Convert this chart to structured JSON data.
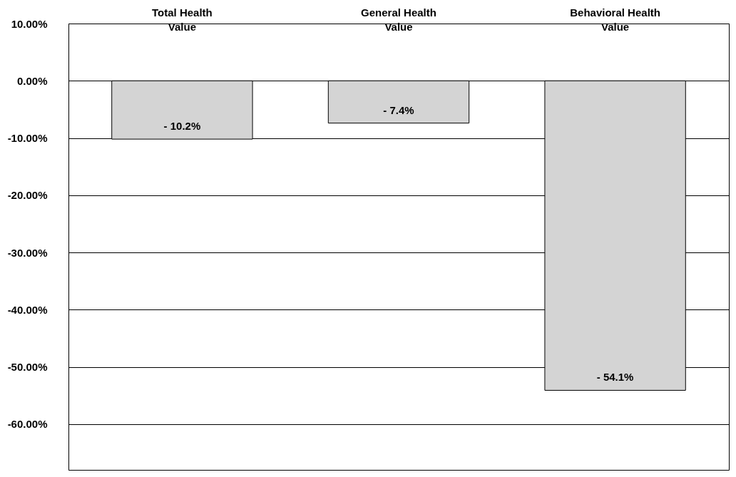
{
  "chart_data": {
    "type": "bar",
    "categories": [
      "Total Health Value",
      "General Health Value",
      "Behavioral Health Value"
    ],
    "values": [
      -10.2,
      -7.4,
      -54.1
    ],
    "value_labels": [
      "- 10.2%",
      "- 7.4%",
      "- 54.1%"
    ],
    "color": "#d4d4d4",
    "ylim": [
      -68,
      10
    ],
    "yticks": [
      {
        "value": 10,
        "label": "10.00%"
      },
      {
        "value": 0,
        "label": "0.00%"
      },
      {
        "value": -10,
        "label": "-10.00%"
      },
      {
        "value": -20,
        "label": "-20.00%"
      },
      {
        "value": -30,
        "label": "-30.00%"
      },
      {
        "value": -40,
        "label": "-40.00%"
      },
      {
        "value": -50,
        "label": "-50.00%"
      },
      {
        "value": -60,
        "label": "-60.00%"
      }
    ],
    "grid": "y"
  }
}
